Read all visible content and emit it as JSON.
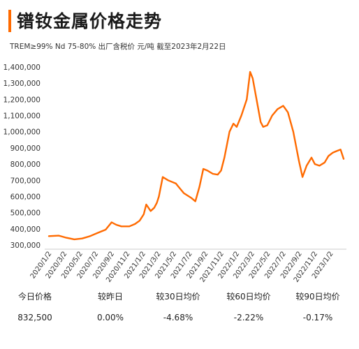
{
  "header": {
    "title": "镨钕金属价格走势",
    "subtitle": "TREM≥99% Nd 75-80%  出厂含税价 元/吨  截至2023年2月22日",
    "accent_color": "#ff6a00"
  },
  "chart_data": {
    "type": "line",
    "title": "镨钕金属价格走势",
    "xlabel": "",
    "ylabel": "",
    "ylim": [
      300000,
      1400000
    ],
    "yticks": [
      300000,
      400000,
      500000,
      600000,
      700000,
      800000,
      900000,
      1000000,
      1100000,
      1200000,
      1300000,
      1400000
    ],
    "ytick_labels": [
      "300,000",
      "400,000",
      "500,000",
      "600,000",
      "700,000",
      "800,000",
      "900,000",
      "1,000,000",
      "1,100,000",
      "1,200,000",
      "1,300,000",
      "1,400,000"
    ],
    "xlim": [
      "2020-01-02",
      "2023-02-22"
    ],
    "xticks": [
      "2020-01-02",
      "2020-03-02",
      "2020-05-02",
      "2020-07-02",
      "2020-09-02",
      "2020-11-02",
      "2021-01-02",
      "2021-03-02",
      "2021-05-02",
      "2021-07-02",
      "2021-09-02",
      "2021-11-02",
      "2022-01-02",
      "2022-03-02",
      "2022-05-02",
      "2022-07-02",
      "2022-09-02",
      "2022-11-02",
      "2023-01-02"
    ],
    "xtick_labels": [
      "2020/1/2",
      "2020/3/2",
      "2020/5/2",
      "2020/7/2",
      "2020/9/2",
      "2020/11/2",
      "2021/1/2",
      "2021/3/2",
      "2021/5/2",
      "2021/7/2",
      "2021/9/2",
      "2021/11/2",
      "2022/1/2",
      "2022/3/2",
      "2022/5/2",
      "2022/7/2",
      "2022/9/2",
      "2022/11/2",
      "2023/1/2"
    ],
    "grid": false,
    "legend": "none",
    "line_color": "#ff6a00",
    "series": [
      {
        "x": [
          "2020-01-02",
          "2020-02-10",
          "2020-03-10",
          "2020-04-10",
          "2020-05-10",
          "2020-06-10",
          "2020-07-10",
          "2020-08-10",
          "2020-09-02",
          "2020-09-20",
          "2020-10-10",
          "2020-11-10",
          "2020-12-02",
          "2020-12-20",
          "2021-01-05",
          "2021-01-15",
          "2021-02-01",
          "2021-02-15",
          "2021-02-25",
          "2021-03-05",
          "2021-03-20",
          "2021-04-10",
          "2021-05-10",
          "2021-06-10",
          "2021-07-10",
          "2021-07-25",
          "2021-08-10",
          "2021-08-25",
          "2021-09-10",
          "2021-10-01",
          "2021-10-20",
          "2021-11-02",
          "2021-11-15",
          "2021-12-05",
          "2021-12-20",
          "2022-01-02",
          "2022-01-20",
          "2022-02-10",
          "2022-02-23",
          "2022-03-05",
          "2022-03-20",
          "2022-04-05",
          "2022-04-15",
          "2022-05-01",
          "2022-05-20",
          "2022-06-10",
          "2022-07-02",
          "2022-07-20",
          "2022-08-10",
          "2022-09-01",
          "2022-09-15",
          "2022-10-01",
          "2022-10-20",
          "2022-11-02",
          "2022-11-20",
          "2022-12-10",
          "2022-12-25",
          "2023-01-10",
          "2023-01-25",
          "2023-02-10",
          "2023-02-22"
        ],
        "y": [
          355000,
          358000,
          345000,
          335000,
          340000,
          355000,
          375000,
          395000,
          440000,
          425000,
          415000,
          415000,
          430000,
          450000,
          490000,
          550000,
          510000,
          530000,
          560000,
          600000,
          720000,
          700000,
          680000,
          620000,
          590000,
          570000,
          660000,
          770000,
          760000,
          740000,
          735000,
          760000,
          840000,
          1000000,
          1050000,
          1030000,
          1100000,
          1200000,
          1370000,
          1330000,
          1200000,
          1060000,
          1030000,
          1040000,
          1100000,
          1140000,
          1160000,
          1120000,
          1000000,
          820000,
          720000,
          790000,
          840000,
          800000,
          790000,
          810000,
          850000,
          870000,
          880000,
          890000,
          832500
        ]
      }
    ]
  },
  "stats": {
    "labels": [
      "今日价格",
      "较昨日",
      "较30日均价",
      "较60日均价",
      "较90日均价"
    ],
    "values": [
      "832,500",
      "0.00%",
      "-4.68%",
      "-2.22%",
      "-0.17%"
    ]
  }
}
